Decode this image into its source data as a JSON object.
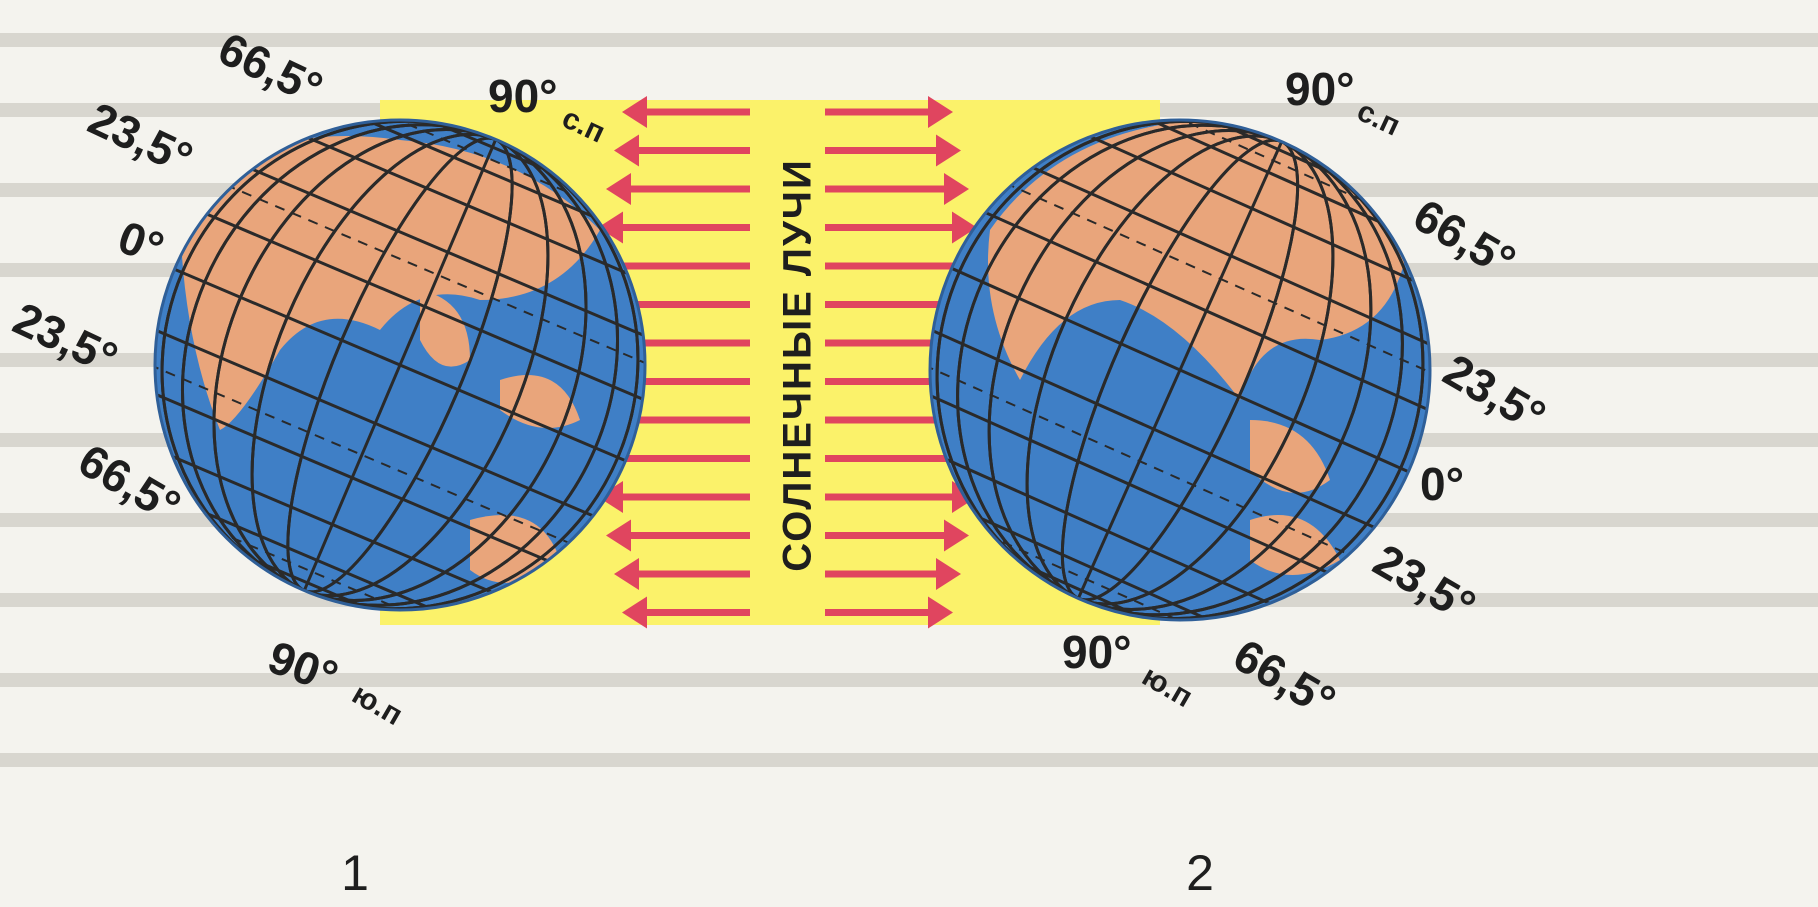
{
  "rays_label": "СОЛНЕЧНЫЕ ЛУЧИ",
  "globes": [
    {
      "number": "1",
      "labels": [
        {
          "text": "66,5°"
        },
        {
          "text": "90°",
          "sub": "с.п"
        },
        {
          "text": "23,5°"
        },
        {
          "text": "0°"
        },
        {
          "text": "23,5°"
        },
        {
          "text": "66,5°"
        },
        {
          "text": "90°",
          "sub": "ю.п"
        }
      ]
    },
    {
      "number": "2",
      "labels": [
        {
          "text": "90°",
          "sub": "с.п"
        },
        {
          "text": "66,5°"
        },
        {
          "text": "23,5°"
        },
        {
          "text": "0°"
        },
        {
          "text": "23,5°"
        },
        {
          "text": "66,5°"
        },
        {
          "text": "90°",
          "sub": "ю.п"
        }
      ]
    }
  ]
}
